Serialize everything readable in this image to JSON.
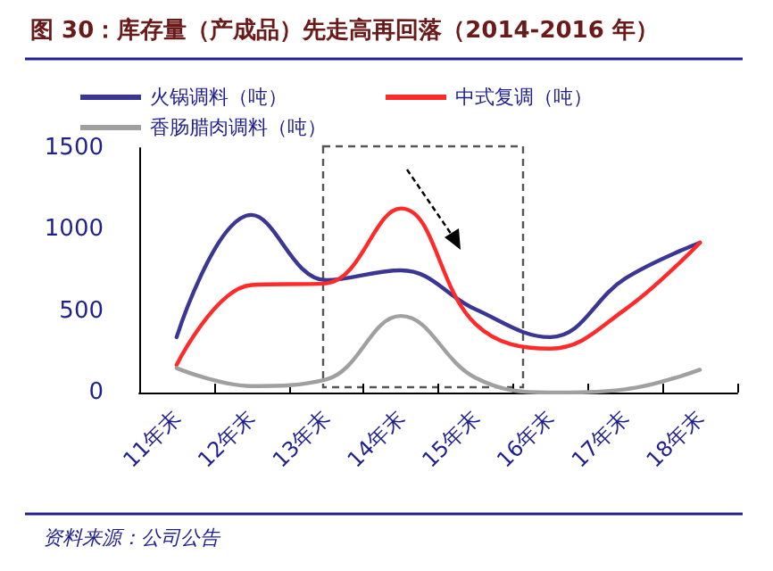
{
  "chart_data": {
    "type": "line",
    "title": "图 30：库存量（产成品）先走高再回落（2014-2016 年）",
    "categories": [
      "11年末",
      "12年末",
      "13年末",
      "14年末",
      "15年末",
      "16年末",
      "17年末",
      "18年末"
    ],
    "series": [
      {
        "name": "火锅调料（吨）",
        "color": "#3b3593",
        "values": [
          340,
          1090,
          690,
          750,
          510,
          340,
          700,
          920
        ]
      },
      {
        "name": "中式复调（吨）",
        "color": "#ff2a2a",
        "values": [
          170,
          660,
          670,
          1130,
          420,
          270,
          510,
          920
        ]
      },
      {
        "name": "香肠腊肉调料（吨）",
        "color": "#a0a0a0",
        "values": [
          150,
          40,
          80,
          470,
          90,
          0,
          20,
          140
        ]
      }
    ],
    "ylim": [
      0,
      1500
    ],
    "yticks": [
      0,
      500,
      1000,
      1500
    ],
    "legend": "top left",
    "grid": false,
    "marker": "none",
    "line_style": "solid",
    "annotations": [
      "资料来源：公司公告"
    ]
  }
}
